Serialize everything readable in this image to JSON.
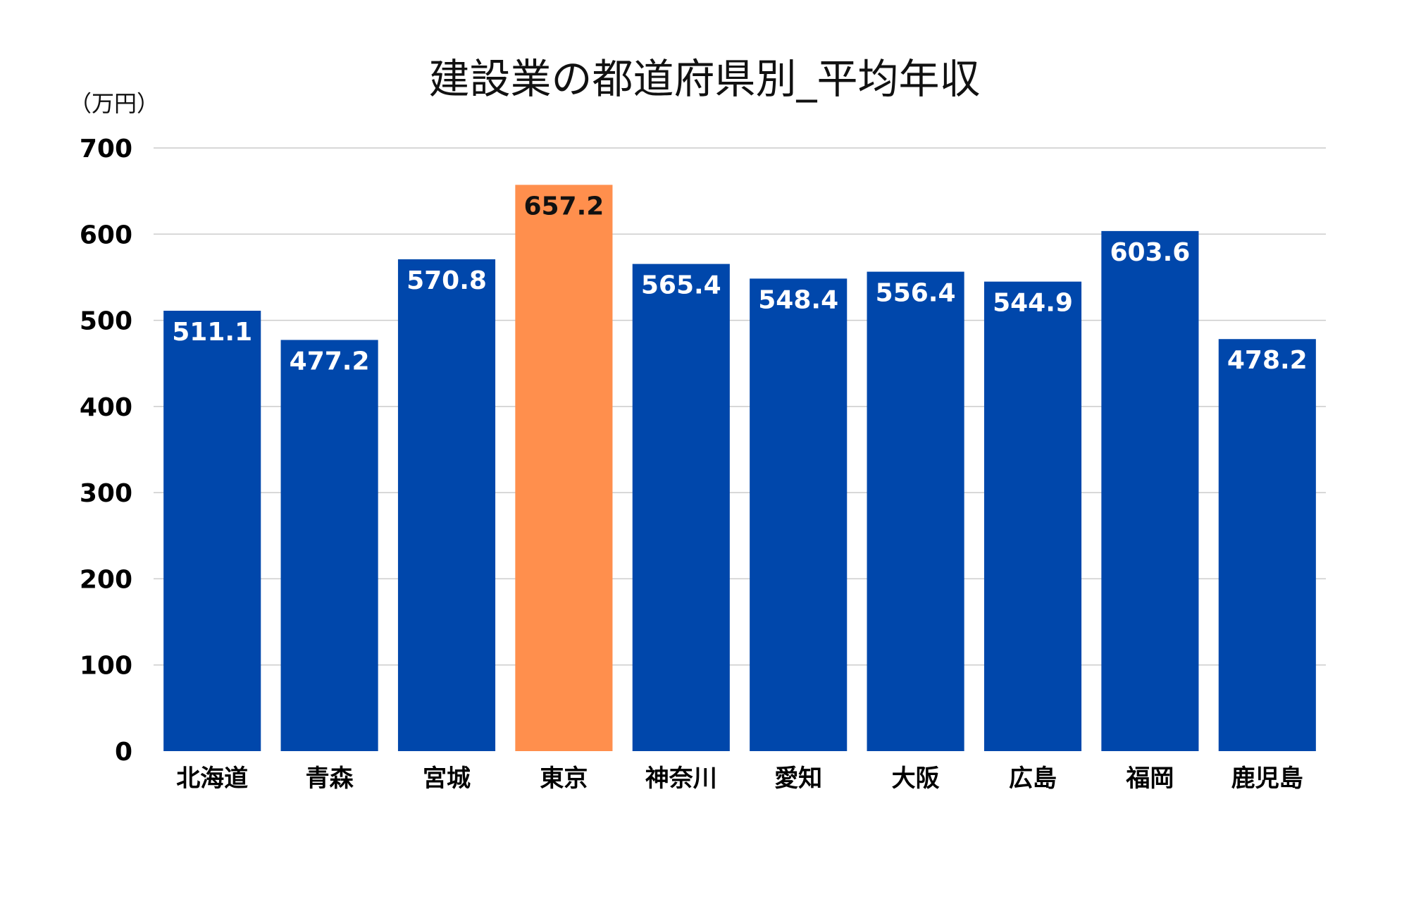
{
  "chart_data": {
    "type": "bar",
    "title": "建設業の都道府県別_平均年収",
    "unit_label": "（万円）",
    "categories": [
      "北海道",
      "青森",
      "宮城",
      "東京",
      "神奈川",
      "愛知",
      "大阪",
      "広島",
      "福岡",
      "鹿児島"
    ],
    "values": [
      511.1,
      477.2,
      570.8,
      657.2,
      565.4,
      548.4,
      556.4,
      544.9,
      603.6,
      478.2
    ],
    "value_labels": [
      "511.1",
      "477.2",
      "570.8",
      "657.2",
      "565.4",
      "548.4",
      "556.4",
      "544.9",
      "603.6",
      "478.2"
    ],
    "highlight_index": 3,
    "ylim": [
      0,
      700
    ],
    "yticks": [
      "0",
      "100",
      "200",
      "300",
      "400",
      "500",
      "600",
      "700"
    ],
    "grid": true,
    "legend": "none",
    "colors": {
      "bar": "#0047AB",
      "highlight": "#FF8F4D",
      "label_on_bar": "#ffffff",
      "label_on_highlight": "#111111",
      "grid": "#cccccc"
    }
  }
}
